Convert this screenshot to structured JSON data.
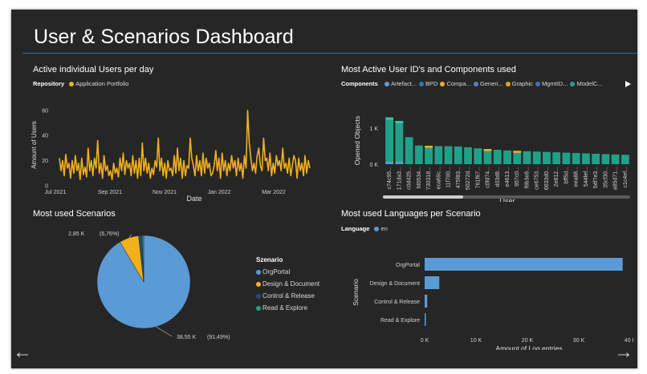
{
  "dashboard": {
    "title": "User & Scenarios Dashboard"
  },
  "nav": {
    "prev_icon": "←",
    "next_icon": "→"
  },
  "chart_data": [
    {
      "type": "line",
      "title": "Active individual Users per day",
      "legend_title": "Repository",
      "series": [
        {
          "name": "Application Portfolio",
          "color": "#f2b01e",
          "values": [
            22,
            12,
            20,
            8,
            25,
            14,
            18,
            6,
            20,
            10,
            24,
            12,
            18,
            5,
            22,
            9,
            15,
            7,
            30,
            12,
            20,
            8,
            22,
            14,
            36,
            10,
            18,
            6,
            24,
            12,
            16,
            8,
            12,
            5,
            18,
            10,
            14,
            7,
            22,
            12,
            26,
            9,
            20,
            14,
            18,
            8,
            24,
            10,
            20,
            6,
            22,
            8,
            34,
            12,
            22,
            10,
            18,
            6,
            14,
            9,
            20,
            15,
            38,
            12,
            22,
            8,
            18,
            6,
            20,
            12,
            14,
            8,
            24,
            10,
            30,
            12,
            22,
            6,
            20,
            8,
            16,
            14,
            38,
            22,
            16,
            8,
            24,
            12,
            20,
            8,
            26,
            10,
            22,
            14,
            18,
            8,
            10,
            16,
            28,
            12,
            22,
            6,
            26,
            12,
            20,
            8,
            18,
            12,
            24,
            14,
            20,
            8,
            22,
            12,
            18,
            6,
            24,
            14,
            60,
            34,
            22,
            12,
            18,
            10,
            24,
            30,
            16,
            12,
            38,
            20,
            22,
            12,
            26,
            8,
            18,
            10,
            24,
            16,
            20,
            12,
            30,
            14,
            18,
            10,
            22,
            8,
            16,
            24,
            20,
            6,
            22,
            12,
            18,
            8,
            24,
            10,
            20,
            14
          ]
        }
      ],
      "x_ticks": [
        "Jul 2021",
        "Sep 2021",
        "Nov 2021",
        "Jan 2022",
        "Mar 2022"
      ],
      "y_ticks": [
        "0",
        "20",
        "40",
        "60"
      ],
      "xlabel": "Date",
      "ylabel": "Amount of Users",
      "ylim": [
        0,
        65
      ]
    },
    {
      "type": "bar",
      "title": "Most Active User ID's and Components used",
      "legend_title": "Components",
      "legend": [
        {
          "name": "Artefact...",
          "color": "#5b9bd5"
        },
        {
          "name": "BPD",
          "color": "#2e75b6"
        },
        {
          "name": "Compa...",
          "color": "#f2b01e"
        },
        {
          "name": "Generi...",
          "color": "#5a7fc2"
        },
        {
          "name": "Graphic",
          "color": "#e0a800"
        },
        {
          "name": "MgmtID...",
          "color": "#4d6fb8"
        },
        {
          "name": "ModelC...",
          "color": "#1fa187"
        }
      ],
      "categories": [
        "c74c95...",
        "171da3...",
        "c0d425...",
        "fd0534...",
        "730318...",
        "eca69c...",
        "11f700...",
        "475f83...",
        "50272d...",
        "761f67...",
        "c0fd74...",
        "d03d8...",
        "e4613...",
        "957c0...",
        "f6b3e8...",
        "ce6753...",
        "6633d0...",
        "2e812...",
        "bff5d...",
        "eea88...",
        "544fef...",
        "5df7e3...",
        "35cf30...",
        "a85d71...",
        "c1c4ef..."
      ],
      "values": [
        1300,
        1200,
        750,
        520,
        510,
        500,
        500,
        490,
        470,
        440,
        420,
        400,
        380,
        370,
        360,
        350,
        340,
        330,
        320,
        310,
        300,
        290,
        280,
        270,
        260
      ],
      "y_ticks": [
        "1 K",
        "0 K"
      ],
      "xlabel": "User",
      "ylabel": "Opened Objects"
    },
    {
      "type": "pie",
      "title": "Most used Scenarios",
      "legend_title": "Szenario",
      "slices": [
        {
          "name": "OrgPortal",
          "value": 38550,
          "color": "#5b9bd5",
          "label": "38,55 K",
          "pct": "(91,49%)"
        },
        {
          "name": "Design & Document",
          "value": 2850,
          "color": "#f2b01e",
          "label": "2,85 K",
          "pct": "(6,76%)"
        },
        {
          "name": "Control & Release",
          "value": 500,
          "color": "#1f4e79",
          "label": "",
          "pct": ""
        },
        {
          "name": "Read & Explore",
          "value": 240,
          "color": "#1fa187",
          "label": "",
          "pct": ""
        }
      ]
    },
    {
      "type": "bar",
      "title": "Most used Languages per Scenario",
      "legend_title": "Language",
      "series": [
        {
          "name": "en",
          "color": "#5b9bd5"
        }
      ],
      "categories": [
        "OrgPortal",
        "Design & Document",
        "Control & Release",
        "Read & Explore"
      ],
      "values": [
        38550,
        2850,
        500,
        240
      ],
      "x_ticks": [
        "0 K",
        "10 K",
        "20 K",
        "30 K",
        "40 K"
      ],
      "xlim": [
        0,
        40000
      ],
      "xlabel": "Amount of Log entries",
      "ylabel": "Scenario"
    }
  ]
}
